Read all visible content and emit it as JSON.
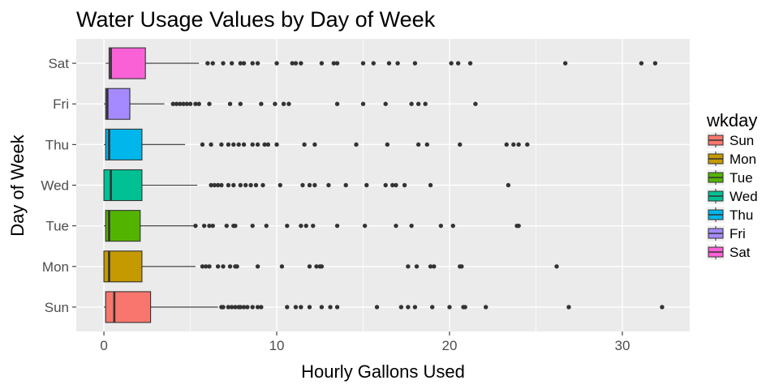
{
  "chart_data": {
    "type": "boxplot",
    "orientation": "horizontal",
    "title": "Water Usage Values by Day of Week",
    "xlabel": "Hourly Gallons Used",
    "ylabel": "Day of Week",
    "xlim": [
      -1.6,
      33.9
    ],
    "xticks": [
      0,
      10,
      20,
      30
    ],
    "grid": true,
    "legend": {
      "title": "wkday",
      "position": "right"
    },
    "categories": [
      "Sun",
      "Mon",
      "Tue",
      "Wed",
      "Thu",
      "Fri",
      "Sat"
    ],
    "colors": {
      "Sun": "#F8766D",
      "Mon": "#C49A00",
      "Tue": "#53B400",
      "Wed": "#00C094",
      "Thu": "#00B6EB",
      "Fri": "#A58AFF",
      "Sat": "#FB61D7"
    },
    "boxes": [
      {
        "category": "Sun",
        "min": 0.0,
        "q1": 0.1,
        "median": 0.6,
        "q3": 2.7,
        "whisker_high": 6.6,
        "outliers": [
          6.8,
          6.9,
          7.2,
          7.4,
          7.6,
          7.8,
          7.9,
          8.1,
          8.3,
          8.6,
          8.9,
          9.1,
          10.6,
          11.1,
          11.4,
          11.9,
          12.6,
          13.1,
          13.5,
          15.8,
          17.2,
          17.6,
          18.0,
          19.0,
          20.0,
          20.8,
          20.9,
          22.1,
          26.9,
          32.3
        ]
      },
      {
        "category": "Mon",
        "min": 0.0,
        "q1": 0.0,
        "median": 0.3,
        "q3": 2.2,
        "whisker_high": 5.3,
        "outliers": [
          5.7,
          5.9,
          6.1,
          6.6,
          6.9,
          7.3,
          7.6,
          7.7,
          8.9,
          10.3,
          11.9,
          12.3,
          12.5,
          12.6,
          17.6,
          18.1,
          18.9,
          19.1,
          20.6,
          20.7,
          26.2
        ]
      },
      {
        "category": "Tue",
        "min": 0.0,
        "q1": 0.1,
        "median": 0.3,
        "q3": 2.1,
        "whisker_high": 5.2,
        "outliers": [
          5.3,
          5.8,
          6.1,
          6.3,
          7.1,
          7.5,
          7.6,
          8.6,
          9.4,
          10.6,
          11.4,
          11.7,
          12.1,
          13.5,
          15.1,
          16.9,
          17.8,
          19.5,
          20.2,
          23.9,
          24.0
        ]
      },
      {
        "category": "Wed",
        "min": 0.0,
        "q1": 0.0,
        "median": 0.4,
        "q3": 2.2,
        "whisker_high": 5.4,
        "outliers": [
          6.2,
          6.4,
          6.6,
          6.8,
          7.2,
          7.5,
          7.9,
          8.2,
          8.5,
          8.8,
          9.2,
          10.2,
          11.5,
          11.9,
          12.2,
          13.0,
          14.0,
          15.2,
          16.3,
          16.7,
          16.9,
          17.4,
          18.9,
          23.4
        ]
      },
      {
        "category": "Thu",
        "min": 0.0,
        "q1": 0.1,
        "median": 0.3,
        "q3": 2.2,
        "whisker_high": 4.7,
        "outliers": [
          5.7,
          6.2,
          6.8,
          7.2,
          7.5,
          7.8,
          8.1,
          8.6,
          8.9,
          9.3,
          9.5,
          10.0,
          11.6,
          12.2,
          14.6,
          16.4,
          18.2,
          18.7,
          20.6,
          23.3,
          23.7,
          24.0,
          24.5
        ]
      },
      {
        "category": "Fri",
        "min": 0.0,
        "q1": 0.1,
        "median": 0.2,
        "q3": 1.5,
        "whisker_high": 3.5,
        "outliers": [
          4.0,
          4.2,
          4.4,
          4.6,
          4.8,
          5.0,
          5.3,
          5.5,
          6.1,
          7.3,
          7.9,
          9.1,
          9.9,
          10.4,
          10.7,
          13.5,
          15.0,
          16.3,
          17.8,
          18.2,
          18.6,
          21.5
        ]
      },
      {
        "category": "Sat",
        "min": 0.1,
        "q1": 0.3,
        "median": 0.4,
        "q3": 2.4,
        "whisker_high": 5.5,
        "outliers": [
          6.0,
          6.3,
          6.9,
          7.4,
          7.9,
          8.1,
          8.6,
          8.9,
          10.0,
          10.9,
          11.1,
          11.4,
          12.6,
          13.3,
          13.5,
          15.0,
          15.6,
          16.5,
          17.0,
          18.0,
          20.1,
          20.5,
          21.2,
          26.7,
          31.1,
          31.9
        ]
      }
    ]
  }
}
